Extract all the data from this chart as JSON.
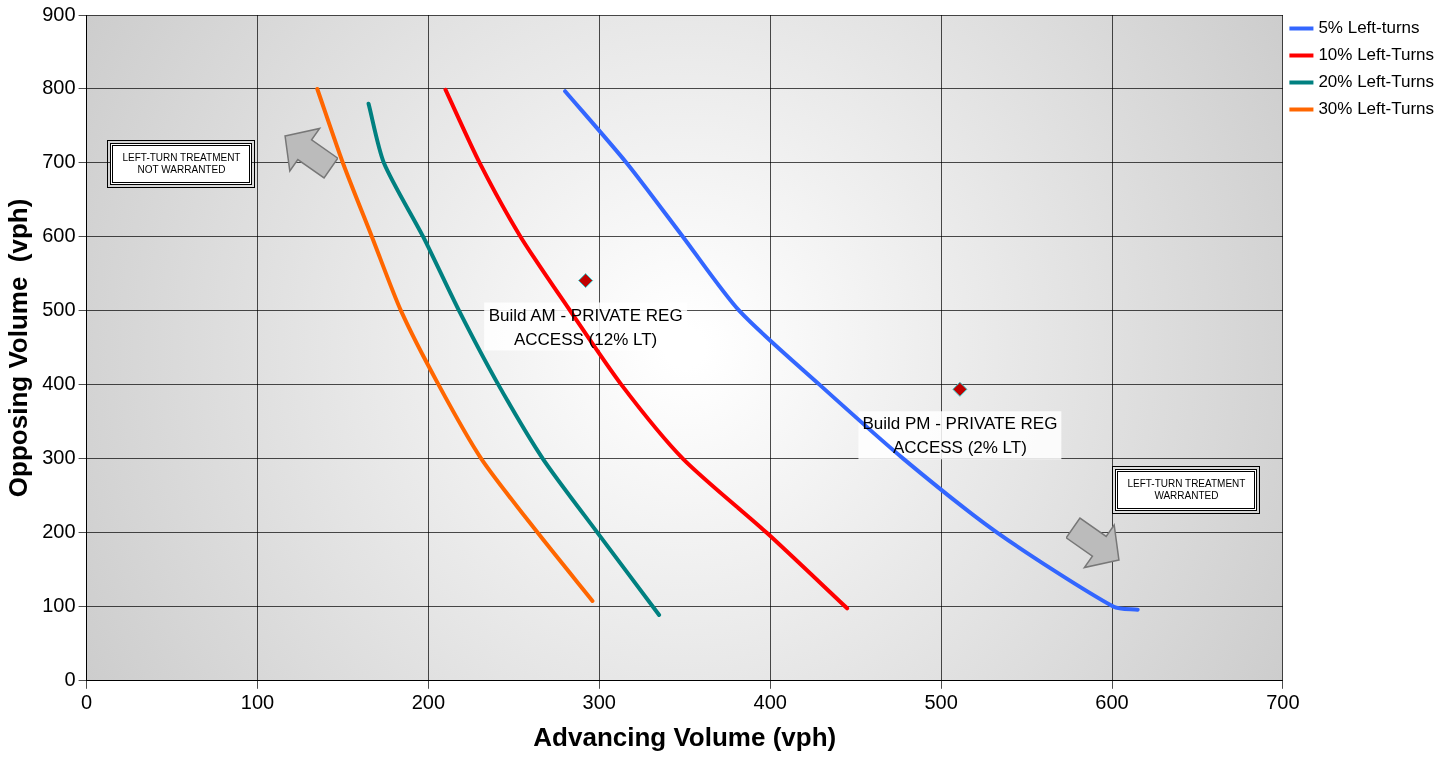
{
  "chart_data": {
    "type": "line",
    "xlabel": "Advancing Volume (vph)",
    "ylabel": "Opposing Volume  (vph)",
    "xlim": [
      0,
      700
    ],
    "xticks": [
      0,
      100,
      200,
      300,
      400,
      500,
      600,
      700
    ],
    "ylim": [
      0,
      900
    ],
    "yticks": [
      0,
      100,
      200,
      300,
      400,
      500,
      600,
      700,
      800,
      900
    ],
    "grid": true,
    "legend": "right",
    "marker": "none",
    "line_style": "solid",
    "series": [
      {
        "name": "5% Left-turns",
        "color": "#3366ff",
        "x": [
          280,
          316,
          349,
          382,
          429,
          478,
          533,
          601,
          615
        ],
        "values": [
          797,
          700,
          600,
          500,
          400,
          300,
          200,
          100,
          96
        ]
      },
      {
        "name": "10% Left-Turns",
        "color": "#ff0000",
        "x": [
          210,
          230,
          254,
          283,
          313,
          349,
          398,
          445
        ],
        "values": [
          799,
          700,
          600,
          500,
          400,
          300,
          200,
          98
        ]
      },
      {
        "name": "20% Left-Turns",
        "color": "#008080",
        "x": [
          165,
          174,
          197,
          218,
          241,
          267,
          299,
          335
        ],
        "values": [
          780,
          700,
          600,
          500,
          400,
          300,
          200,
          89
        ]
      },
      {
        "name": "30% Left-Turns",
        "color": "#ff6600",
        "x": [
          135,
          150,
          167,
          184,
          206,
          231,
          264,
          296
        ],
        "values": [
          800,
          700,
          600,
          500,
          400,
          300,
          200,
          108
        ]
      },
      {
        "type": "scatter",
        "color": "#c00000",
        "marker": "diamond",
        "x": [
          292,
          511
        ],
        "values": [
          541,
          394
        ]
      }
    ],
    "annotations": [
      {
        "text": "Build AM - PRIVATE REG ACCESS (12% LT)",
        "x": 292,
        "y": 541
      },
      {
        "text": "Build PM - PRIVATE REG ACCESS (2% LT)",
        "x": 511,
        "y": 394
      },
      "LEFT-TURN TREATMENT NOT WARRANTED",
      "LEFT-TURN TREATMENT WARRANTED"
    ]
  }
}
